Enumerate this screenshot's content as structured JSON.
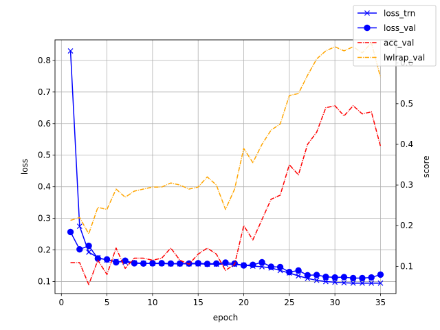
{
  "chart_data": {
    "type": "line",
    "xlabel": "epoch",
    "ylabel_left": "loss",
    "ylabel_right": "score",
    "grid": true,
    "legend_placement": "top-right",
    "x_range": [
      -0.7,
      36.7
    ],
    "x_ticks": [
      0,
      5,
      10,
      15,
      20,
      25,
      30,
      35
    ],
    "y_left_range": [
      0.062,
      0.865
    ],
    "y_left_ticks": [
      0.1,
      0.2,
      0.3,
      0.4,
      0.5,
      0.6,
      0.7,
      0.8
    ],
    "y_right_range": [
      0.033,
      0.657
    ],
    "y_right_ticks": [
      0.1,
      0.2,
      0.3,
      0.4,
      0.5,
      0.6
    ],
    "x": [
      1,
      2,
      3,
      4,
      5,
      6,
      7,
      8,
      9,
      10,
      11,
      12,
      13,
      14,
      15,
      16,
      17,
      18,
      19,
      20,
      21,
      22,
      23,
      24,
      25,
      26,
      27,
      28,
      29,
      30,
      31,
      32,
      33,
      34,
      35
    ],
    "series": [
      {
        "name": "loss_trn",
        "axis": "left",
        "color": "#0000ff",
        "linestyle": "solid",
        "marker": "x",
        "values": [
          0.83,
          0.275,
          0.193,
          0.176,
          0.168,
          0.164,
          0.161,
          0.159,
          0.158,
          0.157,
          0.157,
          0.156,
          0.156,
          0.156,
          0.156,
          0.155,
          0.155,
          0.155,
          0.154,
          0.152,
          0.149,
          0.147,
          0.143,
          0.135,
          0.127,
          0.118,
          0.11,
          0.104,
          0.1,
          0.098,
          0.096,
          0.095,
          0.095,
          0.095,
          0.095
        ]
      },
      {
        "name": "loss_val",
        "axis": "left",
        "color": "#0000ff",
        "linestyle": "solid",
        "marker": "o",
        "values": [
          0.257,
          0.202,
          0.213,
          0.173,
          0.17,
          0.161,
          0.166,
          0.158,
          0.157,
          0.158,
          0.158,
          0.157,
          0.157,
          0.157,
          0.158,
          0.156,
          0.157,
          0.16,
          0.157,
          0.151,
          0.153,
          0.161,
          0.147,
          0.146,
          0.13,
          0.135,
          0.12,
          0.121,
          0.115,
          0.113,
          0.114,
          0.111,
          0.111,
          0.113,
          0.122
        ]
      },
      {
        "name": "acc_val",
        "axis": "right",
        "color": "#ff0000",
        "linestyle": "dashdot",
        "marker": "none",
        "values": [
          0.109,
          0.109,
          0.055,
          0.115,
          0.08,
          0.145,
          0.095,
          0.12,
          0.12,
          0.115,
          0.12,
          0.145,
          0.115,
          0.105,
          0.13,
          0.145,
          0.13,
          0.09,
          0.105,
          0.2,
          0.165,
          0.215,
          0.265,
          0.275,
          0.35,
          0.325,
          0.4,
          0.43,
          0.49,
          0.495,
          0.47,
          0.495,
          0.475,
          0.48,
          0.395
        ]
      },
      {
        "name": "lwlrap_val",
        "axis": "right",
        "color": "#ffa500",
        "linestyle": "dashdot",
        "marker": "none",
        "values": [
          0.213,
          0.22,
          0.18,
          0.245,
          0.24,
          0.29,
          0.27,
          0.285,
          0.29,
          0.295,
          0.295,
          0.305,
          0.3,
          0.29,
          0.295,
          0.32,
          0.3,
          0.24,
          0.29,
          0.39,
          0.355,
          0.4,
          0.435,
          0.45,
          0.52,
          0.525,
          0.57,
          0.61,
          0.63,
          0.64,
          0.63,
          0.64,
          0.625,
          0.65,
          0.565
        ]
      }
    ]
  }
}
